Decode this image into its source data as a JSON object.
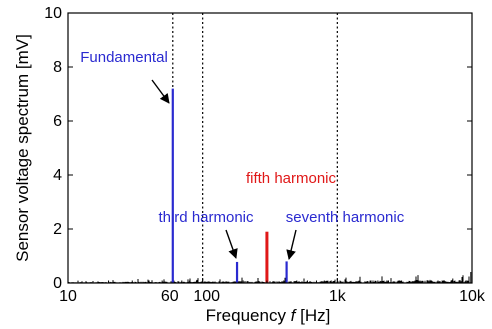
{
  "chart_data": {
    "type": "line",
    "xscale": "log",
    "xlim": [
      10,
      10000
    ],
    "ylim": [
      0,
      10
    ],
    "xlabel_prefix": "Frequency ",
    "xlabel_var": "f",
    "xlabel_unit": " [Hz]",
    "ylabel": "Sensor voltage spectrum [mV]",
    "xticks": [
      {
        "value": 10,
        "label": "10"
      },
      {
        "value": 60,
        "label": "60"
      },
      {
        "value": 100,
        "label": "100"
      },
      {
        "value": 1000,
        "label": "1k"
      },
      {
        "value": 10000,
        "label": "10k"
      }
    ],
    "yticks": [
      {
        "value": 0,
        "label": "0"
      },
      {
        "value": 2,
        "label": "2"
      },
      {
        "value": 4,
        "label": "4"
      },
      {
        "value": 6,
        "label": "6"
      },
      {
        "value": 8,
        "label": "8"
      },
      {
        "value": 10,
        "label": "10"
      }
    ],
    "gridlines_x": [
      60,
      100,
      1000
    ],
    "grid_style": "dotted",
    "peaks": [
      {
        "x": 60,
        "y": 7.2,
        "color": "#2a2ad0",
        "label": "Fundamental",
        "label_color": "#2a2ad0"
      },
      {
        "x": 180,
        "y": 0.78,
        "color": "#2a2ad0",
        "label": "third harmonic",
        "label_color": "#2a2ad0"
      },
      {
        "x": 300,
        "y": 1.9,
        "color": "#e01818",
        "label": "fifth harmonic",
        "label_color": "#e01818"
      },
      {
        "x": 420,
        "y": 0.8,
        "color": "#2a2ad0",
        "label": "seventh harmonic",
        "label_color": "#2a2ad0"
      }
    ],
    "noise_color": "#000000"
  }
}
